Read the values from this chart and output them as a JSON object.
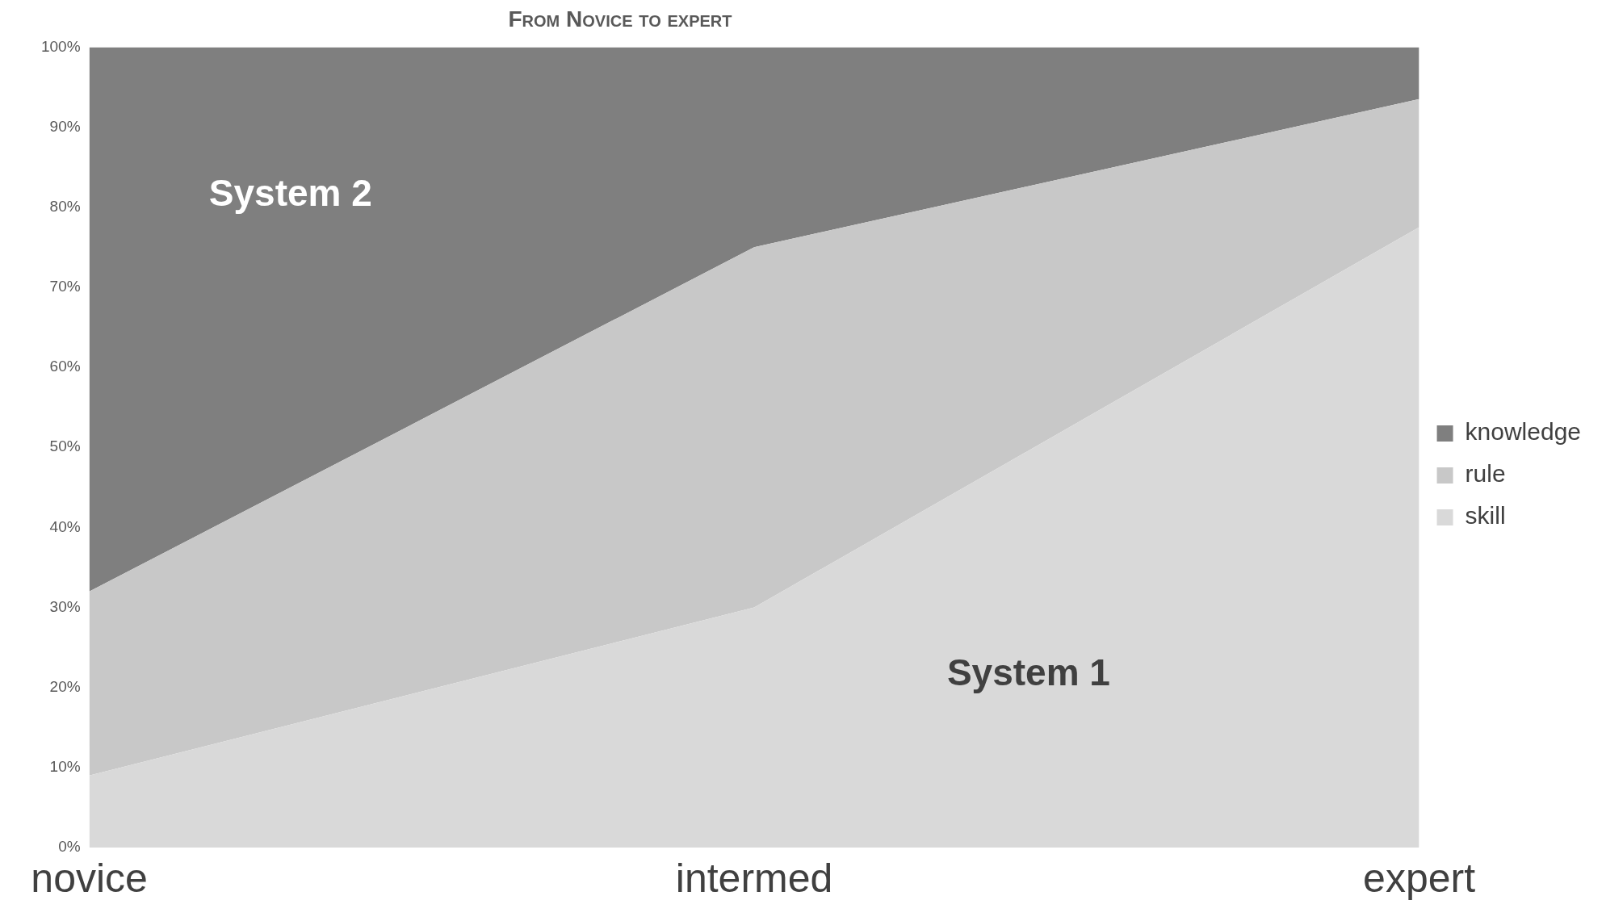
{
  "chart_data": {
    "type": "area",
    "title": "From Novice to expert",
    "categories": [
      "novice",
      "intermed",
      "expert"
    ],
    "stacked": true,
    "series": [
      {
        "name": "skill",
        "color": "#d9d9d9",
        "values": [
          9,
          30,
          77.5
        ]
      },
      {
        "name": "rule",
        "color": "#c8c8c8",
        "values": [
          23,
          45,
          16
        ]
      },
      {
        "name": "knowledge",
        "color": "#7f7f7f",
        "values": [
          68,
          25,
          6.5
        ]
      }
    ],
    "ylim": [
      0,
      100
    ],
    "yticks": [
      {
        "value": 0,
        "label": "0%"
      },
      {
        "value": 10,
        "label": "10%"
      },
      {
        "value": 20,
        "label": "20%"
      },
      {
        "value": 30,
        "label": "30%"
      },
      {
        "value": 40,
        "label": "40%"
      },
      {
        "value": 50,
        "label": "50%"
      },
      {
        "value": 60,
        "label": "60%"
      },
      {
        "value": 70,
        "label": "70%"
      },
      {
        "value": 80,
        "label": "80%"
      },
      {
        "value": 90,
        "label": "90%"
      },
      {
        "value": 100,
        "label": "100%"
      }
    ],
    "grid": false,
    "legend": "right",
    "annotations": [
      "System 2",
      "System 1"
    ]
  }
}
